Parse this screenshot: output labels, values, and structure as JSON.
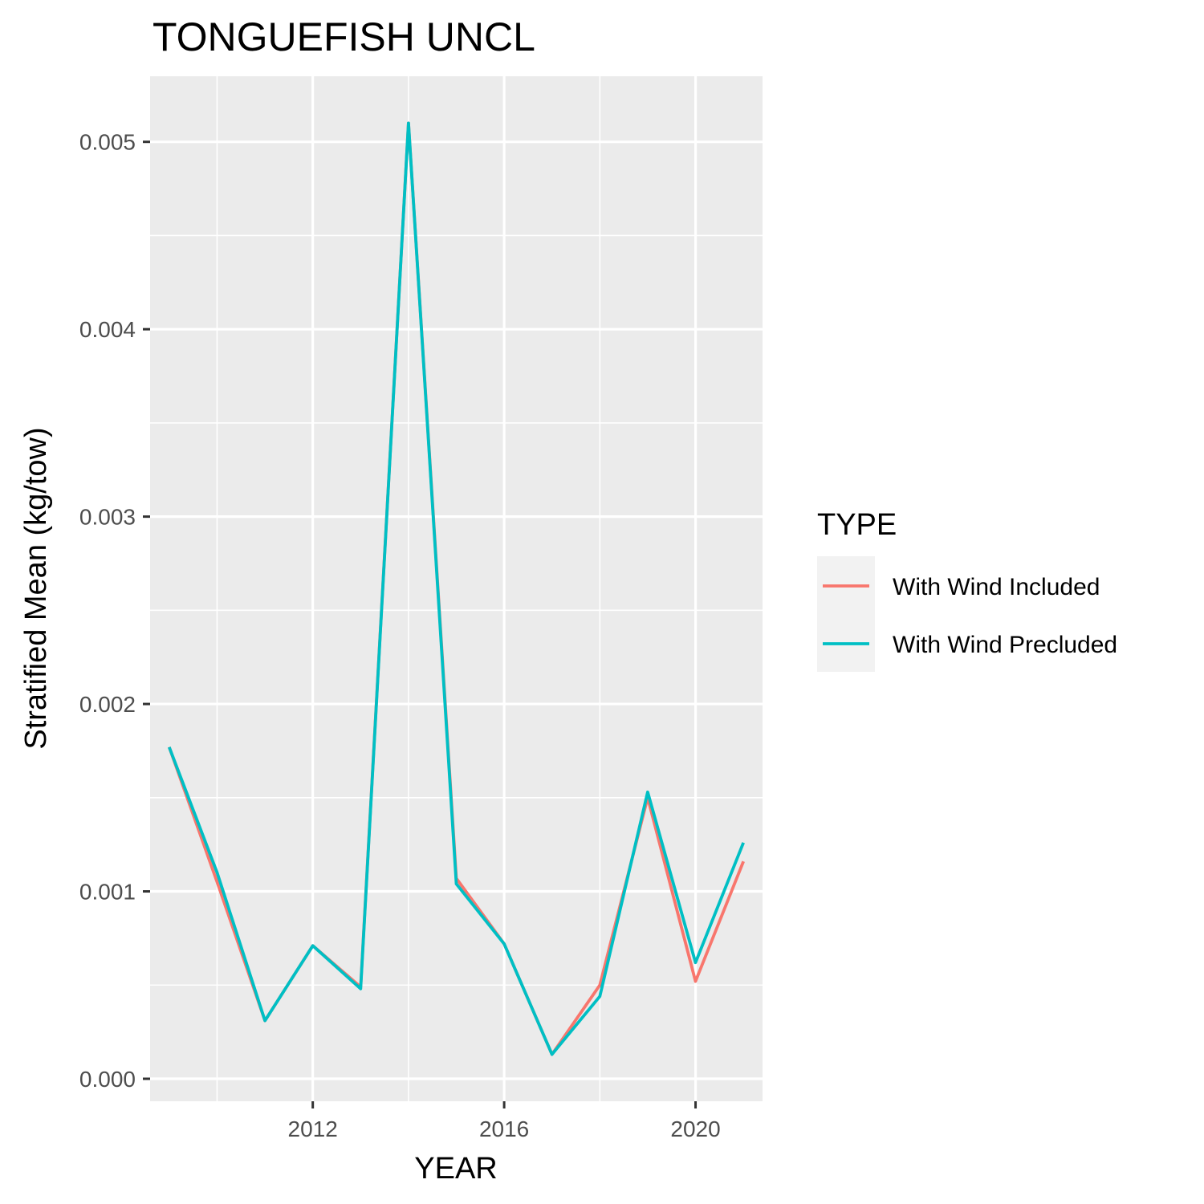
{
  "chart_data": {
    "type": "line",
    "title": "TONGUEFISH UNCL",
    "xlabel": "YEAR",
    "ylabel": "Stratified Mean (kg/tow)",
    "xlim": [
      2008.6,
      2021.4
    ],
    "ylim": [
      -0.00012,
      0.00535
    ],
    "x_ticks": [
      2012,
      2016,
      2020
    ],
    "x_tick_labels": [
      "2012",
      "2016",
      "2020"
    ],
    "y_ticks": [
      0,
      0.001,
      0.002,
      0.003,
      0.004,
      0.005
    ],
    "y_tick_labels": [
      "0.000",
      "0.001",
      "0.002",
      "0.003",
      "0.004",
      "0.005"
    ],
    "grid": true,
    "legend": {
      "title": "TYPE",
      "position": "right"
    },
    "x": [
      2009,
      2010,
      2011,
      2012,
      2013,
      2014,
      2015,
      2016,
      2017,
      2018,
      2019,
      2020,
      2021
    ],
    "series": [
      {
        "name": "With Wind Included",
        "color": "#F8766D",
        "values": [
          0.00177,
          0.00105,
          0.00031,
          0.00071,
          0.00049,
          0.0051,
          0.00107,
          0.00072,
          0.00013,
          0.0005,
          0.0015,
          0.00052,
          0.00116
        ]
      },
      {
        "name": "With Wind Precluded",
        "color": "#00BFC4",
        "values": [
          0.00177,
          0.0011,
          0.00031,
          0.00071,
          0.00048,
          0.0051,
          0.00104,
          0.00072,
          0.00013,
          0.00044,
          0.00153,
          0.00062,
          0.00126
        ]
      }
    ]
  }
}
